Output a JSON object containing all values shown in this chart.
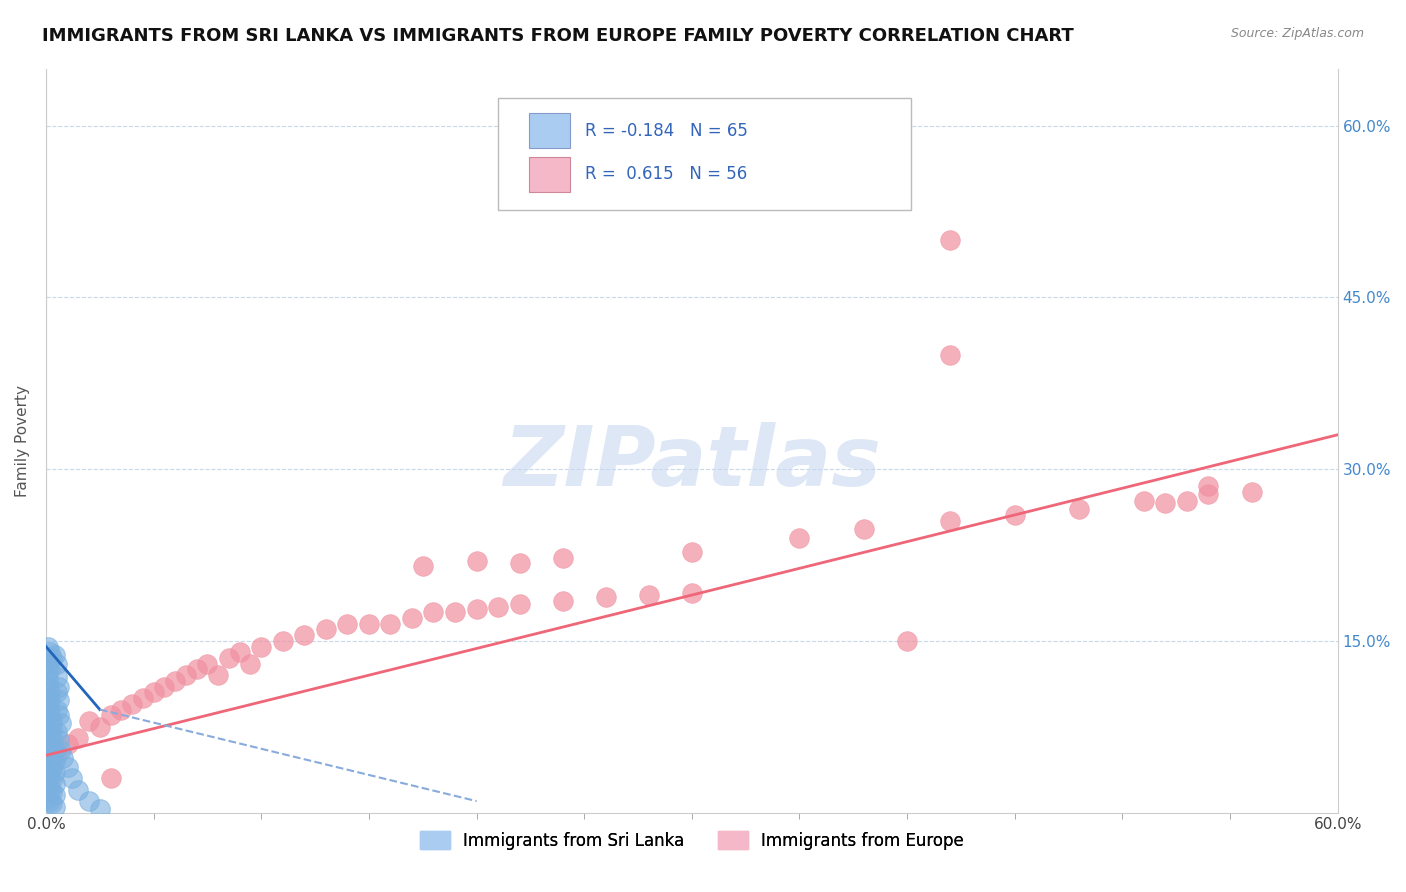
{
  "title": "IMMIGRANTS FROM SRI LANKA VS IMMIGRANTS FROM EUROPE FAMILY POVERTY CORRELATION CHART",
  "source": "Source: ZipAtlas.com",
  "ylabel": "Family Poverty",
  "R_sri": -0.184,
  "N_sri": 65,
  "R_eur": 0.615,
  "N_eur": 56,
  "xlim": [
    0.0,
    0.6
  ],
  "ylim": [
    0.0,
    0.65
  ],
  "watermark": "ZIPatlas",
  "watermark_color": "#c8d8f0",
  "background_color": "#ffffff",
  "grid_color": "#c8d8e8",
  "sri_lanka_dot_color": "#7ab0e0",
  "europe_dot_color": "#f090a0",
  "sri_lanka_line_color": "#2266bb",
  "sri_lanka_dash_color": "#88aadd",
  "europe_line_color": "#ee6677",
  "legend_box_color_sri": "#aaccf0",
  "legend_box_color_eur": "#f4b8c8",
  "sri_label": "Immigrants from Sri Lanka",
  "eur_label": "Immigrants from Europe",
  "title_fontsize": 13,
  "axis_label_fontsize": 11,
  "tick_fontsize": 11,
  "legend_fontsize": 12,
  "scatter_sri_lanka": [
    [
      0.001,
      0.13
    ],
    [
      0.001,
      0.12
    ],
    [
      0.002,
      0.125
    ],
    [
      0.001,
      0.115
    ],
    [
      0.001,
      0.11
    ],
    [
      0.002,
      0.105
    ],
    [
      0.001,
      0.1
    ],
    [
      0.001,
      0.095
    ],
    [
      0.002,
      0.098
    ],
    [
      0.001,
      0.09
    ],
    [
      0.002,
      0.088
    ],
    [
      0.001,
      0.085
    ],
    [
      0.002,
      0.083
    ],
    [
      0.003,
      0.08
    ],
    [
      0.001,
      0.078
    ],
    [
      0.002,
      0.075
    ],
    [
      0.003,
      0.073
    ],
    [
      0.001,
      0.07
    ],
    [
      0.002,
      0.068
    ],
    [
      0.003,
      0.065
    ],
    [
      0.001,
      0.063
    ],
    [
      0.002,
      0.06
    ],
    [
      0.003,
      0.058
    ],
    [
      0.004,
      0.055
    ],
    [
      0.001,
      0.053
    ],
    [
      0.002,
      0.05
    ],
    [
      0.003,
      0.048
    ],
    [
      0.004,
      0.045
    ],
    [
      0.001,
      0.043
    ],
    [
      0.002,
      0.04
    ],
    [
      0.003,
      0.038
    ],
    [
      0.004,
      0.035
    ],
    [
      0.001,
      0.033
    ],
    [
      0.002,
      0.03
    ],
    [
      0.003,
      0.028
    ],
    [
      0.004,
      0.025
    ],
    [
      0.001,
      0.023
    ],
    [
      0.002,
      0.02
    ],
    [
      0.003,
      0.018
    ],
    [
      0.004,
      0.015
    ],
    [
      0.001,
      0.013
    ],
    [
      0.002,
      0.01
    ],
    [
      0.003,
      0.008
    ],
    [
      0.004,
      0.005
    ],
    [
      0.005,
      0.13
    ],
    [
      0.005,
      0.118
    ],
    [
      0.006,
      0.11
    ],
    [
      0.005,
      0.105
    ],
    [
      0.006,
      0.098
    ],
    [
      0.005,
      0.09
    ],
    [
      0.006,
      0.085
    ],
    [
      0.007,
      0.078
    ],
    [
      0.005,
      0.07
    ],
    [
      0.006,
      0.063
    ],
    [
      0.007,
      0.055
    ],
    [
      0.008,
      0.048
    ],
    [
      0.01,
      0.04
    ],
    [
      0.012,
      0.03
    ],
    [
      0.015,
      0.02
    ],
    [
      0.02,
      0.01
    ],
    [
      0.003,
      0.135
    ],
    [
      0.002,
      0.14
    ],
    [
      0.001,
      0.145
    ],
    [
      0.004,
      0.138
    ],
    [
      0.025,
      0.003
    ]
  ],
  "scatter_europe": [
    [
      0.005,
      0.05
    ],
    [
      0.01,
      0.06
    ],
    [
      0.015,
      0.065
    ],
    [
      0.02,
      0.08
    ],
    [
      0.025,
      0.075
    ],
    [
      0.03,
      0.085
    ],
    [
      0.035,
      0.09
    ],
    [
      0.04,
      0.095
    ],
    [
      0.045,
      0.1
    ],
    [
      0.05,
      0.105
    ],
    [
      0.055,
      0.11
    ],
    [
      0.06,
      0.115
    ],
    [
      0.065,
      0.12
    ],
    [
      0.07,
      0.125
    ],
    [
      0.075,
      0.13
    ],
    [
      0.08,
      0.12
    ],
    [
      0.085,
      0.135
    ],
    [
      0.09,
      0.14
    ],
    [
      0.095,
      0.13
    ],
    [
      0.1,
      0.145
    ],
    [
      0.11,
      0.15
    ],
    [
      0.12,
      0.155
    ],
    [
      0.13,
      0.16
    ],
    [
      0.14,
      0.165
    ],
    [
      0.15,
      0.165
    ],
    [
      0.16,
      0.165
    ],
    [
      0.17,
      0.17
    ],
    [
      0.18,
      0.175
    ],
    [
      0.19,
      0.175
    ],
    [
      0.2,
      0.178
    ],
    [
      0.21,
      0.18
    ],
    [
      0.22,
      0.182
    ],
    [
      0.24,
      0.185
    ],
    [
      0.26,
      0.188
    ],
    [
      0.28,
      0.19
    ],
    [
      0.3,
      0.192
    ],
    [
      0.175,
      0.215
    ],
    [
      0.2,
      0.22
    ],
    [
      0.22,
      0.218
    ],
    [
      0.24,
      0.222
    ],
    [
      0.3,
      0.228
    ],
    [
      0.35,
      0.24
    ],
    [
      0.38,
      0.248
    ],
    [
      0.42,
      0.255
    ],
    [
      0.45,
      0.26
    ],
    [
      0.48,
      0.265
    ],
    [
      0.51,
      0.272
    ],
    [
      0.54,
      0.278
    ],
    [
      0.42,
      0.4
    ],
    [
      0.52,
      0.27
    ],
    [
      0.53,
      0.272
    ],
    [
      0.56,
      0.28
    ],
    [
      0.42,
      0.5
    ],
    [
      0.54,
      0.285
    ],
    [
      0.4,
      0.15
    ],
    [
      0.03,
      0.03
    ]
  ],
  "trend_sri_lanka_solid": {
    "x": [
      0.0,
      0.025
    ],
    "y": [
      0.145,
      0.09
    ]
  },
  "trend_sri_lanka_dashed": {
    "x": [
      0.025,
      0.2
    ],
    "y": [
      0.09,
      0.01
    ]
  },
  "trend_europe": {
    "x": [
      0.0,
      0.6
    ],
    "y": [
      0.05,
      0.33
    ]
  }
}
